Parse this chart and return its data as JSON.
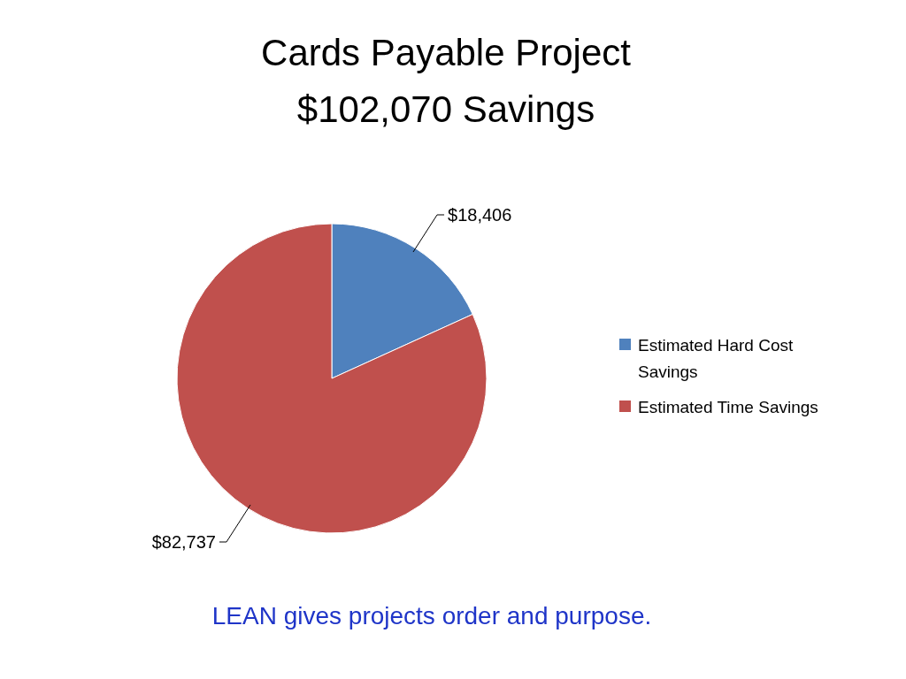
{
  "chart_data": {
    "type": "pie",
    "title": "Cards Payable Project",
    "subtitle": "$102,070 Savings",
    "categories": [
      "Estimated Hard Cost Savings",
      "Estimated Time Savings"
    ],
    "values": [
      18406,
      82737
    ],
    "colors": [
      "#4f81bd",
      "#c0504d"
    ],
    "value_labels": [
      "$18,406",
      "$82,737"
    ],
    "legend": "right",
    "annotations": [
      "LEAN gives projects order and purpose."
    ]
  }
}
